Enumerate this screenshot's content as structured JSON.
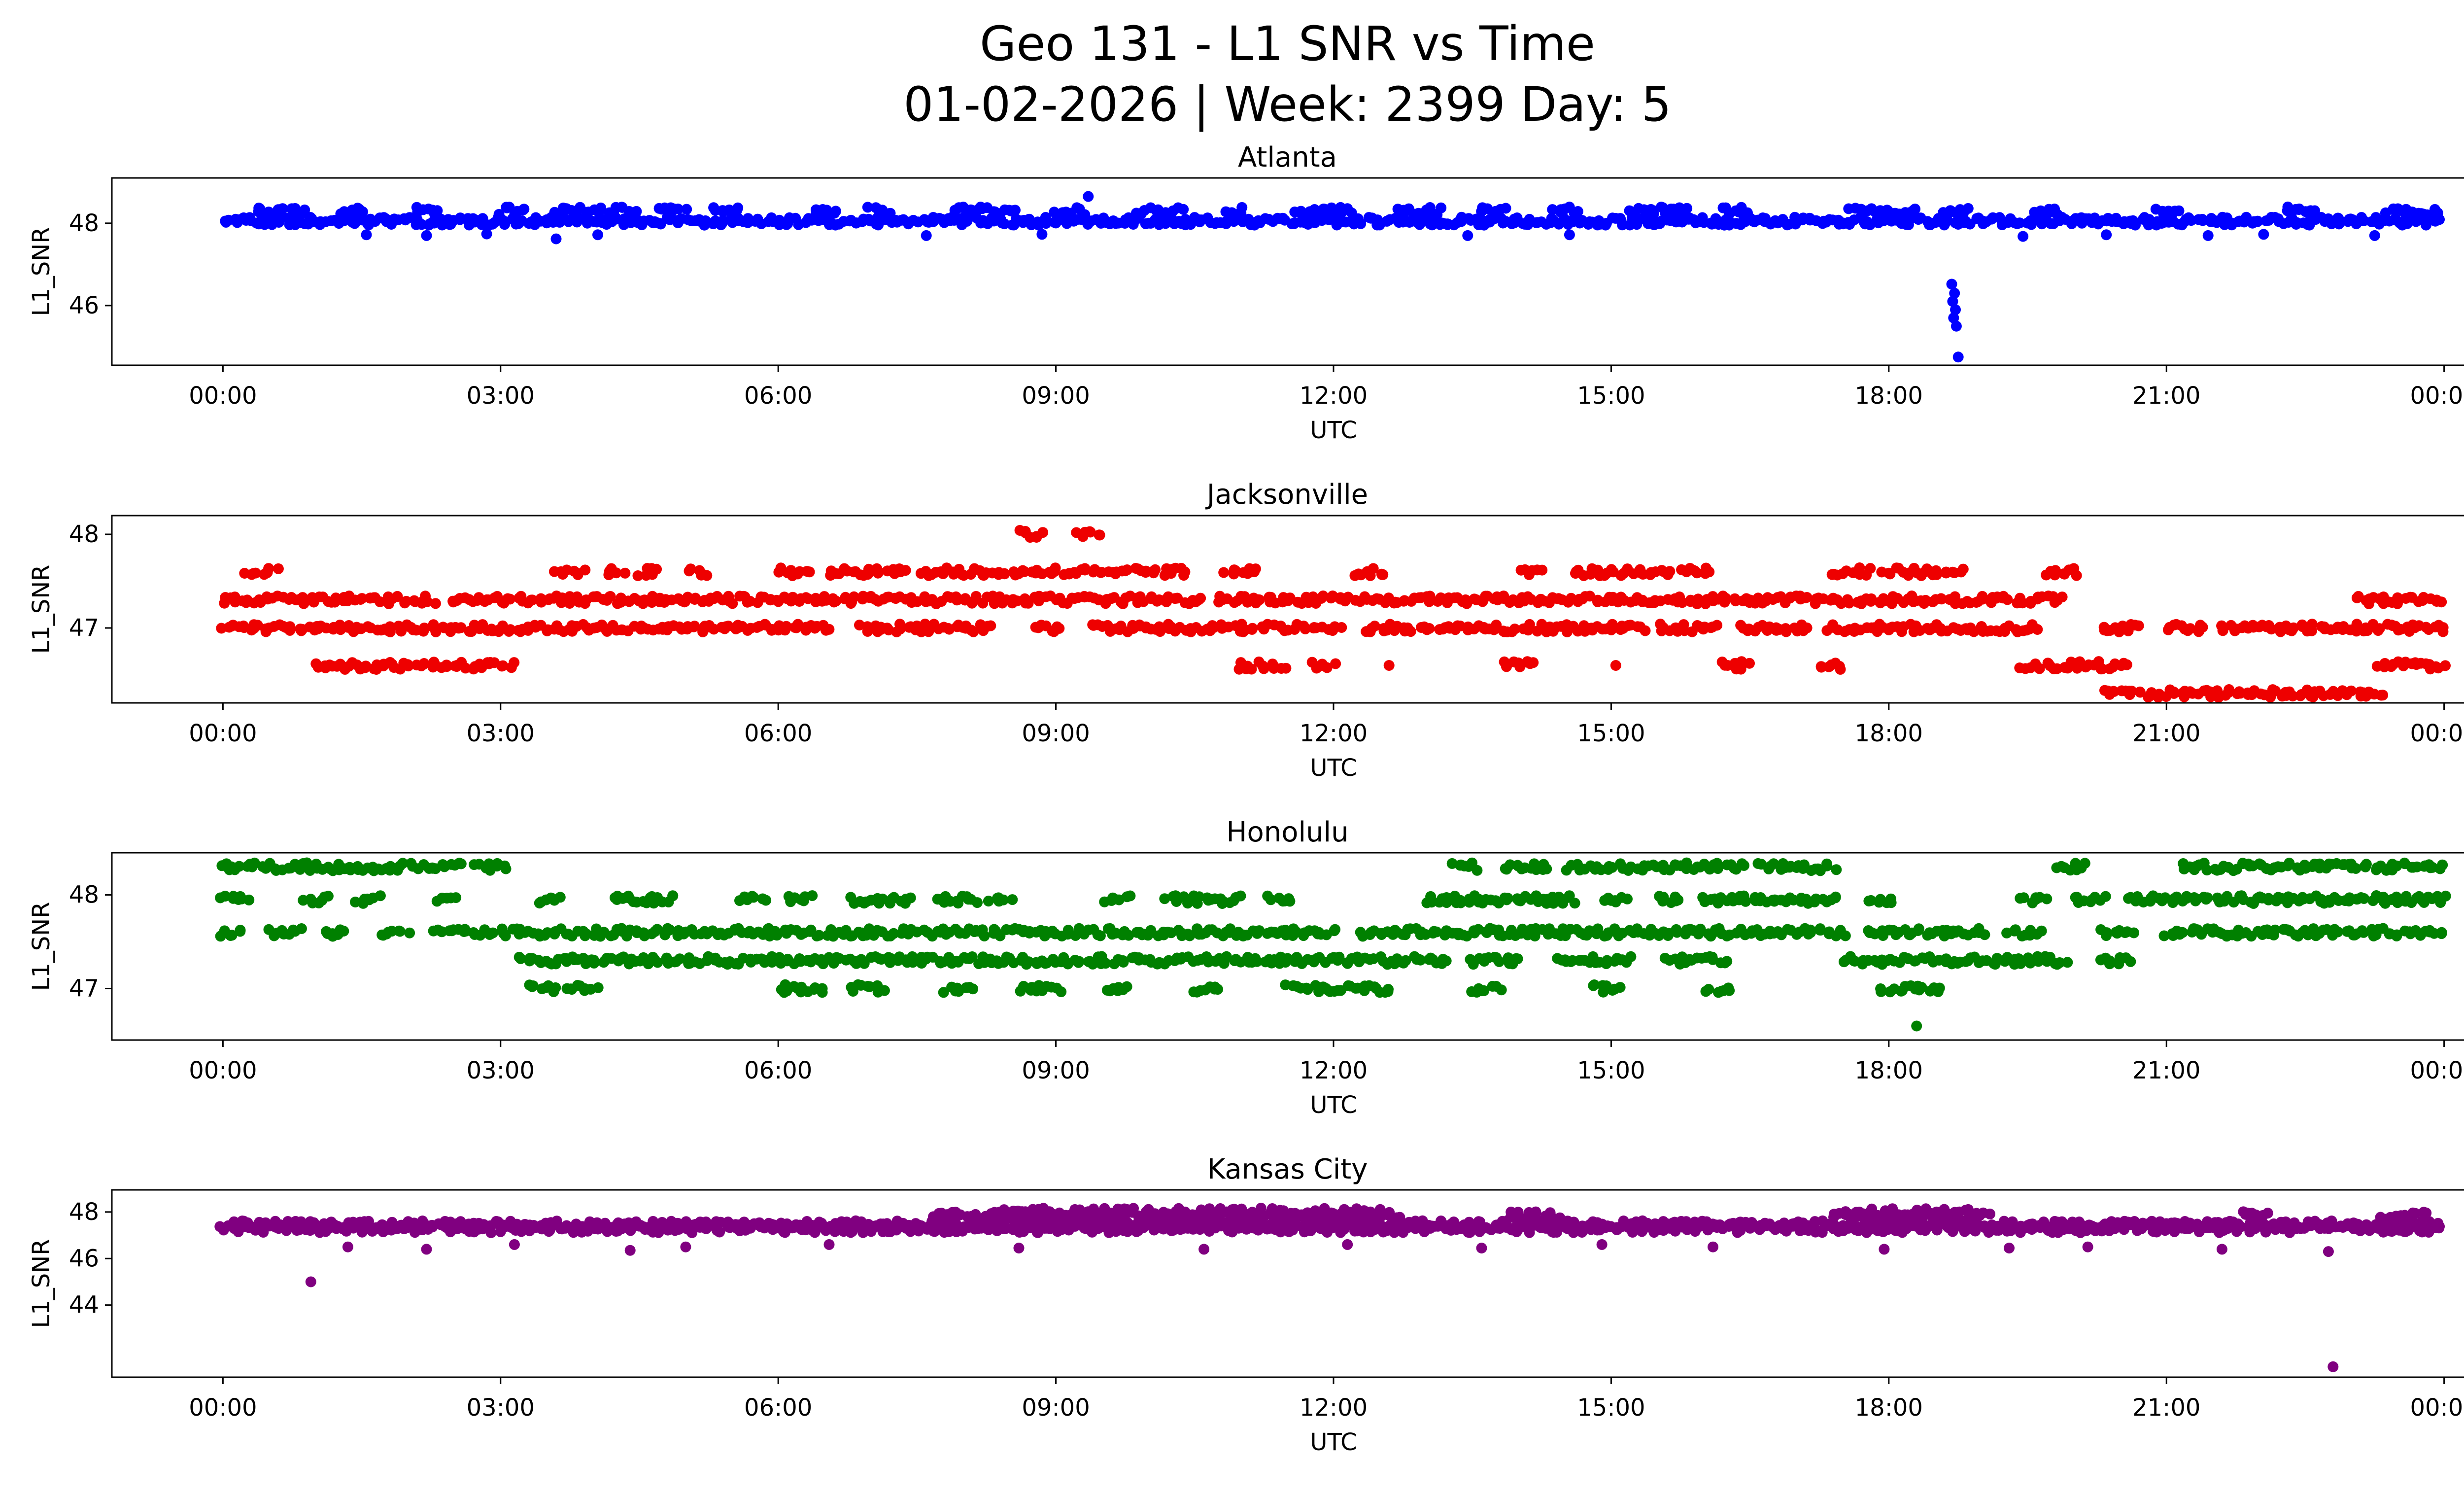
{
  "header": {
    "title_line1": "Geo 131 - L1 SNR vs Time",
    "title_line2": "01-02-2026 | Week: 2399 Day: 5"
  },
  "chart_data": [
    {
      "type": "scatter",
      "title": "Atlanta",
      "color": "#0000ff",
      "xlabel": "UTC",
      "ylabel": "L1_SNR",
      "x_ticks": [
        "00:00",
        "03:00",
        "06:00",
        "09:00",
        "12:00",
        "15:00",
        "18:00",
        "21:00",
        "00:00"
      ],
      "x_tick_hours": [
        0,
        3,
        6,
        9,
        12,
        15,
        18,
        21,
        24
      ],
      "xlim": [
        -1.2,
        25.2
      ],
      "ylim": [
        44.55,
        49.1
      ],
      "y_ticks": [
        46,
        48
      ],
      "grid": false,
      "bands": [
        {
          "y": 48.05,
          "step": 0.035,
          "segments": [
            [
              0,
              24
            ]
          ]
        },
        {
          "y": 48.3,
          "segments": [
            [
              0.35,
              0.9
            ],
            [
              1.3,
              1.55
            ],
            [
              2.1,
              2.35
            ],
            [
              3.0,
              3.3
            ],
            [
              3.6,
              4.45
            ],
            [
              4.7,
              5.0
            ],
            [
              5.3,
              5.6
            ],
            [
              6.4,
              6.65
            ],
            [
              7.0,
              7.25
            ],
            [
              7.9,
              8.6
            ],
            [
              9.0,
              9.3
            ],
            [
              9.9,
              10.35
            ],
            [
              10.8,
              11.05
            ],
            [
              11.6,
              12.2
            ],
            [
              12.7,
              13.2
            ],
            [
              13.6,
              13.85
            ],
            [
              14.4,
              14.65
            ],
            [
              15.2,
              15.85
            ],
            [
              16.2,
              16.45
            ],
            [
              17.6,
              18.3
            ],
            [
              18.6,
              18.85
            ],
            [
              19.6,
              19.85
            ],
            [
              20.9,
              21.15
            ],
            [
              22.3,
              22.65
            ],
            [
              23.4,
              23.95
            ]
          ]
        }
      ],
      "points": [
        [
          1.55,
          47.72
        ],
        [
          2.2,
          47.7
        ],
        [
          2.85,
          47.74
        ],
        [
          3.6,
          47.62
        ],
        [
          4.05,
          47.72
        ],
        [
          7.6,
          47.7
        ],
        [
          8.85,
          47.73
        ],
        [
          13.45,
          47.7
        ],
        [
          14.55,
          47.72
        ],
        [
          19.45,
          47.68
        ],
        [
          20.35,
          47.72
        ],
        [
          21.45,
          47.7
        ],
        [
          22.05,
          47.73
        ],
        [
          23.25,
          47.7
        ],
        [
          9.35,
          48.65
        ],
        [
          18.68,
          46.52
        ],
        [
          18.71,
          46.3
        ],
        [
          18.69,
          46.1
        ],
        [
          18.72,
          45.9
        ],
        [
          18.7,
          45.7
        ],
        [
          18.73,
          45.5
        ],
        [
          18.75,
          44.75
        ]
      ]
    },
    {
      "type": "scatter",
      "title": "Jacksonville",
      "color": "#ee0000",
      "xlabel": "UTC",
      "ylabel": "L1_SNR",
      "x_ticks": [
        "00:00",
        "03:00",
        "06:00",
        "09:00",
        "12:00",
        "15:00",
        "18:00",
        "21:00",
        "00:00"
      ],
      "x_tick_hours": [
        0,
        3,
        6,
        9,
        12,
        15,
        18,
        21,
        24
      ],
      "xlim": [
        -1.2,
        25.2
      ],
      "ylim": [
        46.2,
        48.2
      ],
      "y_ticks": [
        47,
        48
      ],
      "grid": false,
      "bands": [
        {
          "y": 48.0,
          "segments": [
            [
              8.6,
              8.85
            ],
            [
              9.25,
              9.5
            ]
          ]
        },
        {
          "y": 47.6,
          "segments": [
            [
              0.25,
              0.6
            ],
            [
              3.6,
              3.9
            ],
            [
              4.15,
              4.35
            ],
            [
              4.5,
              4.7
            ],
            [
              5.05,
              5.25
            ],
            [
              6.0,
              6.35
            ],
            [
              6.55,
              7.4
            ],
            [
              7.55,
              10.45
            ],
            [
              10.85,
              11.2
            ],
            [
              12.25,
              12.6
            ],
            [
              14.0,
              14.25
            ],
            [
              14.6,
              15.65
            ],
            [
              15.75,
              16.1
            ],
            [
              17.4,
              17.8
            ],
            [
              17.95,
              18.8
            ],
            [
              19.7,
              20.05
            ]
          ]
        },
        {
          "y": 47.3,
          "segments": [
            [
              0,
              2.3
            ],
            [
              2.45,
              10.6
            ],
            [
              10.75,
              19.9
            ],
            [
              23.05,
              24
            ]
          ]
        },
        {
          "y": 47.0,
          "segments": [
            [
              0,
              6.6
            ],
            [
              6.9,
              8.3
            ],
            [
              8.75,
              9.1
            ],
            [
              9.4,
              12.1
            ],
            [
              12.35,
              15.35
            ],
            [
              15.5,
              16.15
            ],
            [
              16.4,
              17.15
            ],
            [
              17.35,
              19.6
            ],
            [
              20.3,
              20.7
            ],
            [
              21.0,
              21.4
            ],
            [
              21.6,
              24
            ]
          ]
        },
        {
          "y": 46.6,
          "segments": [
            [
              1.0,
              3.15
            ],
            [
              10.95,
              11.5
            ],
            [
              11.75,
              12.0
            ],
            [
              13.85,
              14.2
            ],
            [
              16.2,
              16.5
            ],
            [
              17.25,
              17.5
            ],
            [
              19.45,
              20.6
            ],
            [
              23.3,
              24
            ]
          ]
        },
        {
          "y": 46.3,
          "segments": [
            [
              20.3,
              23.35
            ]
          ]
        }
      ],
      "points": [
        [
          12.6,
          46.6
        ],
        [
          15.05,
          46.6
        ],
        [
          22.6,
          46.32
        ]
      ]
    },
    {
      "type": "scatter",
      "title": "Honolulu",
      "color": "#008000",
      "xlabel": "UTC",
      "ylabel": "L1_SNR",
      "x_ticks": [
        "00:00",
        "03:00",
        "06:00",
        "09:00",
        "12:00",
        "15:00",
        "18:00",
        "21:00",
        "00:00"
      ],
      "x_tick_hours": [
        0,
        3,
        6,
        9,
        12,
        15,
        18,
        21,
        24
      ],
      "xlim": [
        -1.2,
        25.2
      ],
      "ylim": [
        46.45,
        48.45
      ],
      "y_ticks": [
        47,
        48
      ],
      "grid": false,
      "bands": [
        {
          "y": 48.3,
          "segments": [
            [
              0,
              2.6
            ],
            [
              2.75,
              3.1
            ],
            [
              13.3,
              13.55
            ],
            [
              13.85,
              14.35
            ],
            [
              14.55,
              16.45
            ],
            [
              16.6,
              17.4
            ],
            [
              19.85,
              20.15
            ],
            [
              21.15,
              24
            ]
          ]
        },
        {
          "y": 47.95,
          "segments": [
            [
              0,
              0.3
            ],
            [
              0.9,
              1.15
            ],
            [
              1.45,
              1.7
            ],
            [
              2.3,
              2.5
            ],
            [
              3.4,
              3.65
            ],
            [
              4.2,
              4.9
            ],
            [
              5.6,
              5.85
            ],
            [
              6.1,
              6.35
            ],
            [
              6.8,
              7.45
            ],
            [
              7.7,
              8.15
            ],
            [
              8.3,
              8.5
            ],
            [
              9.55,
              9.8
            ],
            [
              10.2,
              11.0
            ],
            [
              11.3,
              11.55
            ],
            [
              13.0,
              14.6
            ],
            [
              14.9,
              15.15
            ],
            [
              15.5,
              15.75
            ],
            [
              16.0,
              17.45
            ],
            [
              17.8,
              18.05
            ],
            [
              19.45,
              19.7
            ],
            [
              20.0,
              20.35
            ],
            [
              20.6,
              24
            ]
          ]
        },
        {
          "y": 47.6,
          "segments": [
            [
              0,
              0.2
            ],
            [
              0.5,
              0.85
            ],
            [
              1.1,
              1.35
            ],
            [
              1.7,
              2.0
            ],
            [
              2.3,
              12.05
            ],
            [
              12.3,
              17.5
            ],
            [
              17.75,
              19.05
            ],
            [
              19.3,
              19.65
            ],
            [
              20.3,
              20.65
            ],
            [
              21.0,
              24
            ]
          ]
        },
        {
          "y": 47.3,
          "segments": [
            [
              3.2,
              13.25
            ],
            [
              13.5,
              14.05
            ],
            [
              14.4,
              15.2
            ],
            [
              15.6,
              16.25
            ],
            [
              17.5,
              19.9
            ],
            [
              20.3,
              20.6
            ]
          ]
        },
        {
          "y": 47.0,
          "segments": [
            [
              3.3,
              3.6
            ],
            [
              3.7,
              4.05
            ],
            [
              6.0,
              6.5
            ],
            [
              6.8,
              7.15
            ],
            [
              7.8,
              8.1
            ],
            [
              8.6,
              9.05
            ],
            [
              9.55,
              9.8
            ],
            [
              10.5,
              10.8
            ],
            [
              11.5,
              12.65
            ],
            [
              13.5,
              13.8
            ],
            [
              14.8,
              15.1
            ],
            [
              16.05,
              16.3
            ],
            [
              17.9,
              18.6
            ]
          ]
        }
      ],
      "points": [
        [
          18.3,
          46.6
        ]
      ]
    },
    {
      "type": "scatter",
      "title": "Kansas City",
      "color": "#800080",
      "xlabel": "UTC",
      "ylabel": "L1_SNR",
      "x_ticks": [
        "00:00",
        "03:00",
        "06:00",
        "09:00",
        "12:00",
        "15:00",
        "18:00",
        "21:00",
        "00:00"
      ],
      "x_tick_hours": [
        0,
        3,
        6,
        9,
        12,
        15,
        18,
        21,
        24
      ],
      "xlim": [
        -1.2,
        25.2
      ],
      "ylim": [
        40.9,
        48.95
      ],
      "y_ticks": [
        44,
        46,
        48
      ],
      "grid": false,
      "bands": [
        {
          "y": 47.45,
          "step": 0.035,
          "segments": [
            [
              0,
              24
            ]
          ]
        },
        {
          "y": 47.28,
          "step": 0.045,
          "segments": [
            [
              0,
              24
            ]
          ]
        },
        {
          "y": 47.85,
          "segments": [
            [
              7.7,
              12.7
            ],
            [
              13.9,
              14.45
            ],
            [
              17.4,
              19.1
            ],
            [
              21.8,
              22.15
            ],
            [
              23.35,
              23.8
            ]
          ]
        },
        {
          "y": 48.0,
          "step": 0.06,
          "segments": [
            [
              8.3,
              12.6
            ],
            [
              17.55,
              18.95
            ]
          ]
        }
      ],
      "points": [
        [
          1.35,
          46.5
        ],
        [
          2.2,
          46.4
        ],
        [
          3.15,
          46.6
        ],
        [
          4.4,
          46.35
        ],
        [
          5.0,
          46.5
        ],
        [
          6.55,
          46.6
        ],
        [
          8.6,
          46.45
        ],
        [
          10.6,
          46.4
        ],
        [
          12.15,
          46.6
        ],
        [
          13.6,
          46.45
        ],
        [
          14.9,
          46.6
        ],
        [
          16.1,
          46.5
        ],
        [
          17.95,
          46.4
        ],
        [
          19.3,
          46.45
        ],
        [
          20.15,
          46.5
        ],
        [
          21.6,
          46.4
        ],
        [
          22.75,
          46.3
        ],
        [
          0.95,
          45.0
        ],
        [
          22.8,
          41.35
        ]
      ]
    }
  ]
}
